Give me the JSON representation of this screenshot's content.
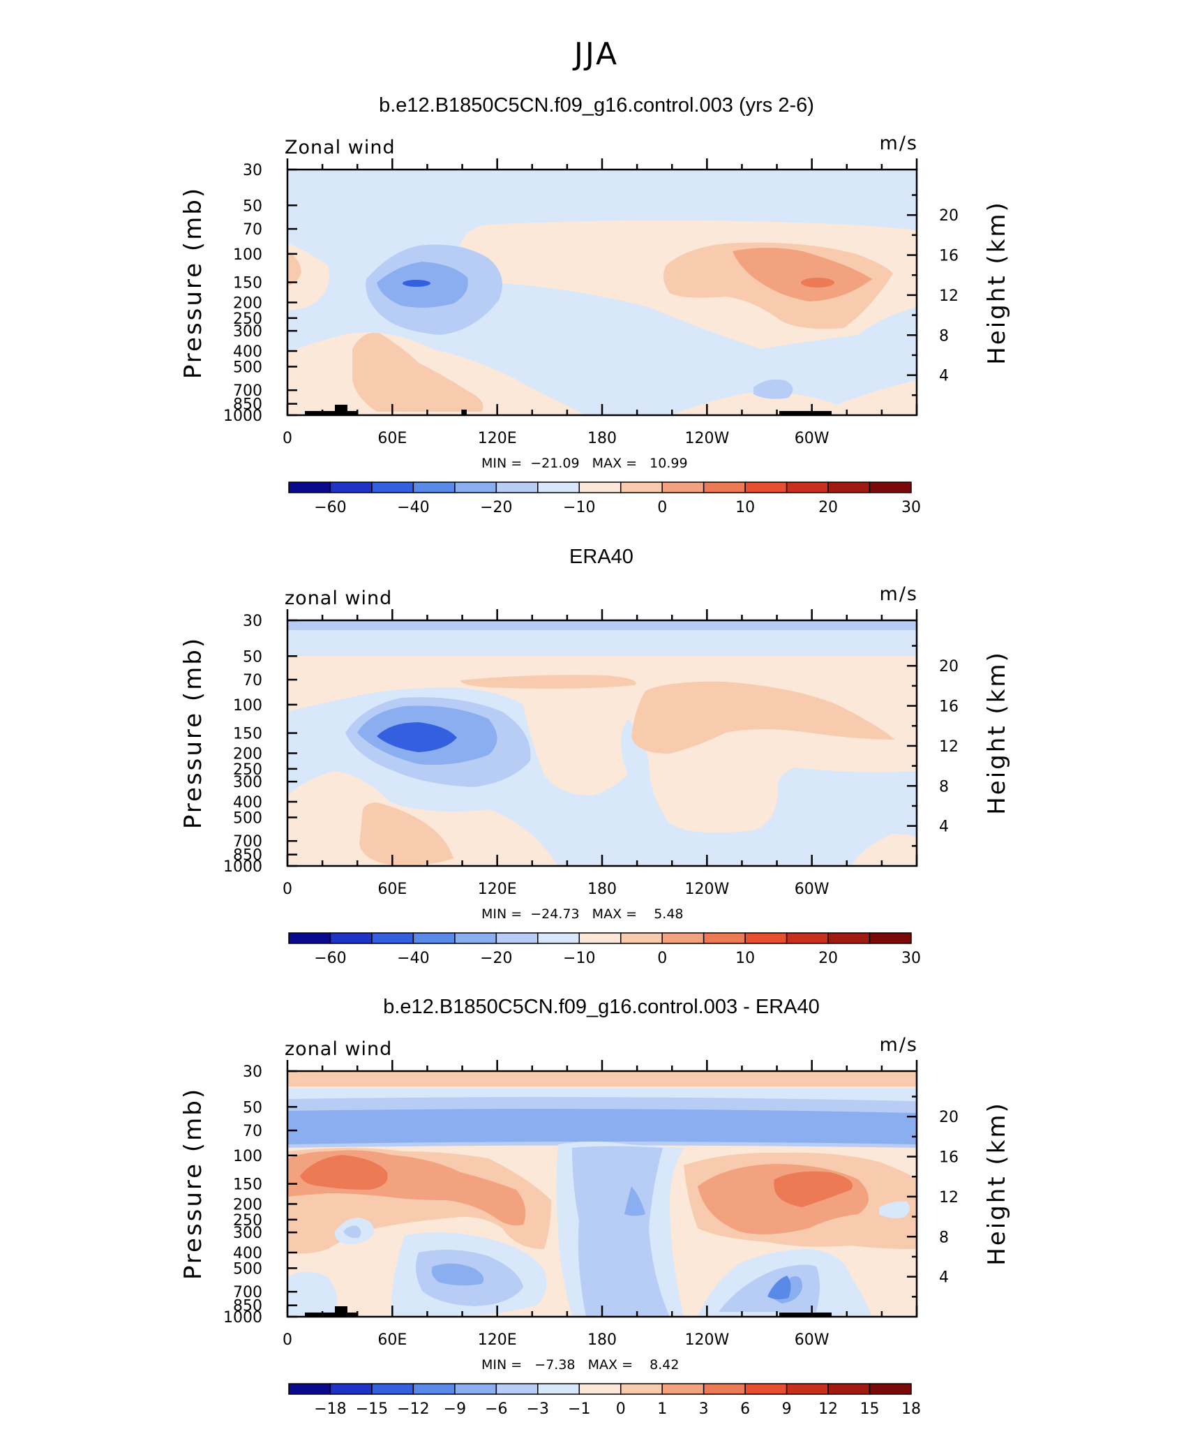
{
  "page": {
    "season_title": "JJA"
  },
  "chart_data": [
    {
      "type": "heatmap",
      "title": "b.e12.B1850C5CN.f09_g16.control.003 (yrs 2-6)",
      "variable_label": "Zonal wind",
      "units": "m/s",
      "ylabel": "Pressure (mb)",
      "ylabel_right": "Height (km)",
      "x_ticks": [
        "0",
        "60E",
        "120E",
        "180",
        "120W",
        "60W"
      ],
      "y_ticks": [
        "30",
        "50",
        "70",
        "100",
        "150",
        "200",
        "250",
        "300",
        "400",
        "500",
        "700",
        "850",
        "1000"
      ],
      "y_right_ticks": [
        "20",
        "16",
        "12",
        "8",
        "4"
      ],
      "stats": "MIN =  −21.09   MAX =   10.99",
      "min": -21.09,
      "max": 10.99,
      "colorbar_labels": [
        "−60",
        "−40",
        "−20",
        "−10",
        "0",
        "10",
        "20",
        "30"
      ],
      "colorbar_levels": [
        -70,
        -60,
        -50,
        -40,
        -30,
        -20,
        -15,
        -10,
        -5,
        0,
        5,
        10,
        15,
        20,
        25,
        30
      ],
      "features": [
        {
          "kind": "jet",
          "lon": 70,
          "p": 150,
          "value": -21,
          "label": "easterly jet core"
        },
        {
          "kind": "jet",
          "lon": 290,
          "p": 150,
          "value": 11,
          "label": "westerly maximum"
        }
      ]
    },
    {
      "type": "heatmap",
      "title": "ERA40",
      "variable_label": "zonal wind",
      "units": "m/s",
      "ylabel": "Pressure (mb)",
      "ylabel_right": "Height (km)",
      "x_ticks": [
        "0",
        "60E",
        "120E",
        "180",
        "120W",
        "60W"
      ],
      "y_ticks": [
        "30",
        "50",
        "70",
        "100",
        "150",
        "200",
        "250",
        "300",
        "400",
        "500",
        "700",
        "850",
        "1000"
      ],
      "y_right_ticks": [
        "20",
        "16",
        "12",
        "8",
        "4"
      ],
      "stats": "MIN =  −24.73   MAX =    5.48",
      "min": -24.73,
      "max": 5.48,
      "colorbar_labels": [
        "−60",
        "−40",
        "−20",
        "−10",
        "0",
        "10",
        "20",
        "30"
      ],
      "colorbar_levels": [
        -70,
        -60,
        -50,
        -40,
        -30,
        -20,
        -15,
        -10,
        -5,
        0,
        5,
        10,
        15,
        20,
        25,
        30
      ],
      "features": [
        {
          "kind": "jet",
          "lon": 75,
          "p": 150,
          "value": -24.7,
          "label": "easterly jet core"
        }
      ]
    },
    {
      "type": "heatmap",
      "title": "b.e12.B1850C5CN.f09_g16.control.003 - ERA40",
      "variable_label": "zonal wind",
      "units": "m/s",
      "ylabel": "Pressure (mb)",
      "ylabel_right": "Height (km)",
      "x_ticks": [
        "0",
        "60E",
        "120E",
        "180",
        "120W",
        "60W"
      ],
      "y_ticks": [
        "30",
        "50",
        "70",
        "100",
        "150",
        "200",
        "250",
        "300",
        "400",
        "500",
        "700",
        "850",
        "1000"
      ],
      "y_right_ticks": [
        "20",
        "16",
        "12",
        "8",
        "4"
      ],
      "stats": "MIN =   −7.38   MAX =    8.42",
      "min": -7.38,
      "max": 8.42,
      "colorbar_labels": [
        "−18",
        "−15",
        "−12",
        "−9",
        "−6",
        "−3",
        "−1",
        "0",
        "1",
        "3",
        "6",
        "9",
        "12",
        "15",
        "18"
      ],
      "colorbar_levels": [
        -18,
        -15,
        -12,
        -9,
        -6,
        -3,
        -1,
        0,
        1,
        3,
        6,
        9,
        12,
        15,
        18
      ],
      "features": [
        {
          "kind": "band",
          "p": 60,
          "value": -6,
          "label": "stratospheric negative bias"
        },
        {
          "kind": "max",
          "lon": 30,
          "p": 120,
          "value": 8,
          "label": "positive bias"
        },
        {
          "kind": "max",
          "lon": 290,
          "p": 150,
          "value": 8.4,
          "label": "positive bias"
        }
      ]
    }
  ],
  "colors": {
    "palette": [
      "#0a0a8c",
      "#1f34c4",
      "#3460e0",
      "#5a8ae8",
      "#8aaef0",
      "#b8cdf6",
      "#d8e8fa",
      "#fce8d8",
      "#f8caae",
      "#f3a280",
      "#ec7a55",
      "#e65030",
      "#c8301e",
      "#a01a12",
      "#7a0a0a"
    ],
    "land": "#000000"
  }
}
